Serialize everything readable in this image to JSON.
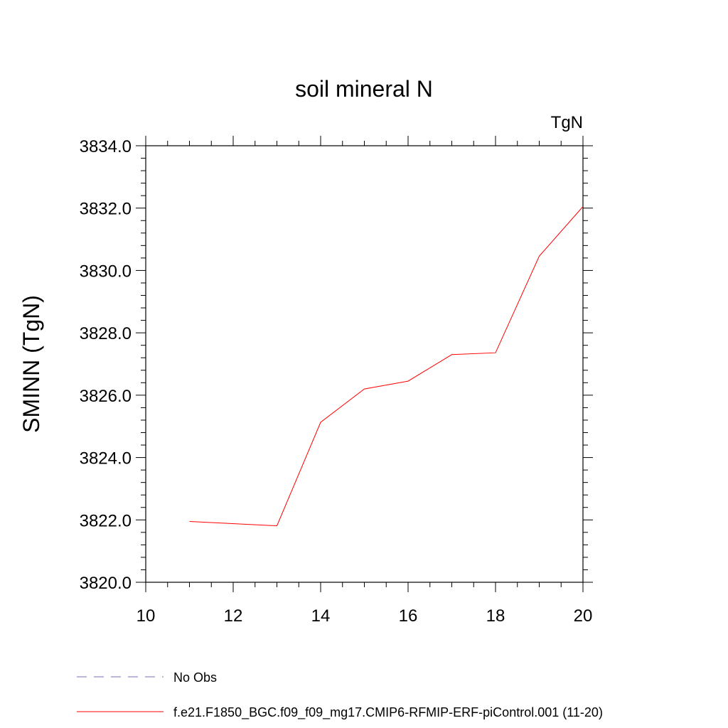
{
  "chart_data": {
    "type": "line",
    "title": "soil mineral N",
    "units_label": "TgN",
    "ylabel": "SMINN  (TgN)",
    "xlabel": "",
    "xlim": [
      10,
      20
    ],
    "ylim": [
      3820,
      3834
    ],
    "x_ticks": [
      10,
      12,
      14,
      16,
      18,
      20
    ],
    "y_ticks": [
      3820,
      3822,
      3824,
      3826,
      3828,
      3830,
      3832,
      3834
    ],
    "x_tick_labels": [
      "10",
      "12",
      "14",
      "16",
      "18",
      "20"
    ],
    "y_tick_labels": [
      "3820.0",
      "3822.0",
      "3824.0",
      "3826.0",
      "3828.0",
      "3830.0",
      "3832.0",
      "3834.0"
    ],
    "grid": false,
    "legend_position": "bottom",
    "series": [
      {
        "name": "f.e21.F1850_BGC.f09_f09_mg17.CMIP6-RFMIP-ERF-piControl.001 (11-20)",
        "color": "#ff0000",
        "style": "solid",
        "x": [
          11,
          13,
          14,
          15,
          16,
          17,
          18,
          19,
          20
        ],
        "y": [
          3821.95,
          3821.81,
          3825.13,
          3826.2,
          3826.45,
          3827.3,
          3827.36,
          3830.46,
          3832.05
        ]
      }
    ],
    "legend": [
      {
        "name": "No Obs",
        "color": "#7a6fb5",
        "style": "dashed"
      },
      {
        "name": "f.e21.F1850_BGC.f09_f09_mg17.CMIP6-RFMIP-ERF-piControl.001 (11-20)",
        "color": "#ff0000",
        "style": "solid"
      }
    ]
  }
}
